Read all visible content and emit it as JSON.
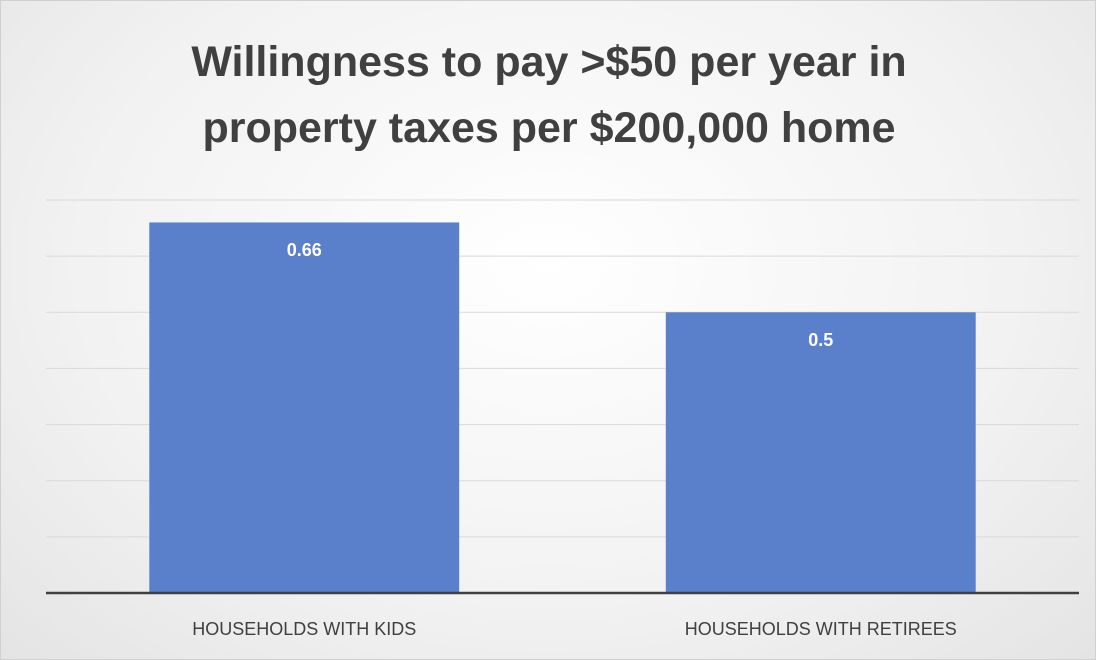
{
  "chart_data": {
    "type": "bar",
    "title": "Willingness to pay >$50 per year in property taxes per $200,000 home",
    "categories": [
      "HOUSEHOLDS WITH KIDS",
      "HOUSEHOLDS WITH RETIREES"
    ],
    "values": [
      0.66,
      0.5
    ],
    "color": "#5a80cc",
    "ylim": [
      0,
      0.7
    ],
    "yticks": [
      0,
      0.1,
      0.2,
      0.3,
      0.4,
      0.5,
      0.6,
      0.7
    ],
    "grid": true
  }
}
